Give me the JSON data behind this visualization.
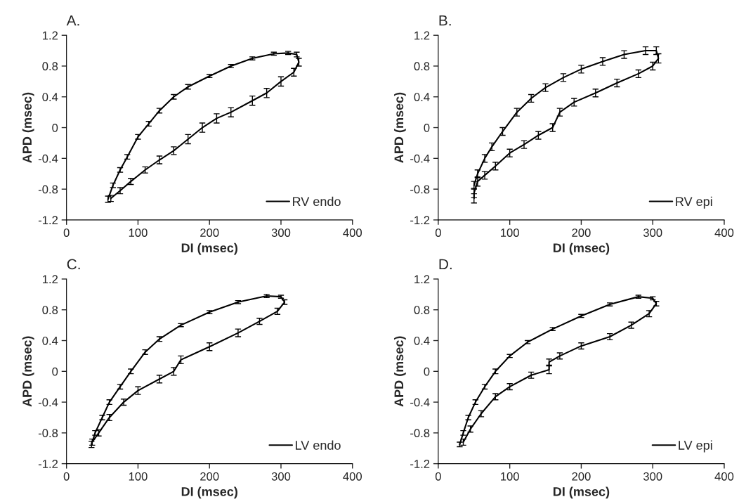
{
  "chart_data": [
    {
      "type": "line",
      "title": "A.",
      "xlabel": "DI (msec)",
      "ylabel": "APD (msec)",
      "xlim": [
        0,
        400
      ],
      "xticks": [
        0,
        100,
        200,
        300,
        400
      ],
      "ylim": [
        -1.2,
        1.2
      ],
      "yticks": [
        -1.2,
        -0.8,
        -0.4,
        0,
        0.4,
        0.8,
        1.2
      ],
      "legend": "bottom right",
      "grid": false,
      "marker": "none",
      "line_style": "solid",
      "series": [
        {
          "name": "RV endo",
          "color": "#000000",
          "x": [
            58,
            65,
            75,
            85,
            100,
            115,
            130,
            150,
            170,
            200,
            230,
            260,
            290,
            310,
            322,
            325,
            318,
            300,
            280,
            260,
            230,
            210,
            190,
            170,
            150,
            130,
            110,
            90,
            75,
            62
          ],
          "values": [
            -0.93,
            -0.75,
            -0.55,
            -0.38,
            -0.12,
            0.05,
            0.22,
            0.4,
            0.53,
            0.67,
            0.8,
            0.9,
            0.96,
            0.97,
            0.95,
            0.85,
            0.72,
            0.6,
            0.45,
            0.35,
            0.2,
            0.12,
            0.0,
            -0.15,
            -0.3,
            -0.42,
            -0.55,
            -0.7,
            -0.82,
            -0.92
          ],
          "errors": [
            0.04,
            0.03,
            0.03,
            0.03,
            0.03,
            0.03,
            0.03,
            0.03,
            0.03,
            0.02,
            0.02,
            0.02,
            0.02,
            0.02,
            0.03,
            0.05,
            0.05,
            0.06,
            0.06,
            0.06,
            0.06,
            0.06,
            0.06,
            0.06,
            0.05,
            0.05,
            0.04,
            0.04,
            0.04,
            0.04
          ]
        }
      ]
    },
    {
      "type": "line",
      "title": "B.",
      "xlabel": "DI (msec)",
      "ylabel": "APD (msec)",
      "xlim": [
        0,
        400
      ],
      "xticks": [
        0,
        100,
        200,
        300,
        400
      ],
      "ylim": [
        -1.2,
        1.2
      ],
      "yticks": [
        -1.2,
        -0.8,
        -0.4,
        0,
        0.4,
        0.8,
        1.2
      ],
      "legend": "bottom right",
      "grid": false,
      "marker": "none",
      "line_style": "solid",
      "series": [
        {
          "name": "RV epi",
          "color": "#000000",
          "x": [
            50,
            55,
            65,
            75,
            90,
            110,
            130,
            150,
            175,
            200,
            230,
            260,
            290,
            305,
            308,
            300,
            280,
            250,
            220,
            190,
            170,
            160,
            140,
            120,
            100,
            80,
            65,
            55,
            50,
            50
          ],
          "values": [
            -0.75,
            -0.6,
            -0.4,
            -0.25,
            -0.05,
            0.2,
            0.38,
            0.52,
            0.65,
            0.76,
            0.86,
            0.95,
            1.0,
            1.0,
            0.9,
            0.8,
            0.7,
            0.58,
            0.45,
            0.33,
            0.2,
            0.0,
            -0.1,
            -0.22,
            -0.33,
            -0.5,
            -0.62,
            -0.7,
            -0.85,
            -0.92
          ],
          "errors": [
            0.05,
            0.05,
            0.05,
            0.05,
            0.05,
            0.05,
            0.05,
            0.05,
            0.05,
            0.05,
            0.05,
            0.05,
            0.05,
            0.05,
            0.06,
            0.05,
            0.05,
            0.05,
            0.05,
            0.05,
            0.05,
            0.05,
            0.05,
            0.05,
            0.05,
            0.05,
            0.05,
            0.06,
            0.06,
            0.06
          ]
        }
      ]
    },
    {
      "type": "line",
      "title": "C.",
      "xlabel": "DI (msec)",
      "ylabel": "APD (msec)",
      "xlim": [
        0,
        400
      ],
      "xticks": [
        0,
        100,
        200,
        300,
        400
      ],
      "ylim": [
        -1.2,
        1.2
      ],
      "yticks": [
        -1.2,
        -0.8,
        -0.4,
        0,
        0.4,
        0.8,
        1.2
      ],
      "legend": "bottom right",
      "grid": false,
      "marker": "none",
      "line_style": "solid",
      "series": [
        {
          "name": "LV endo",
          "color": "#000000",
          "x": [
            35,
            40,
            50,
            60,
            75,
            90,
            110,
            130,
            160,
            200,
            240,
            280,
            300,
            305,
            295,
            270,
            240,
            200,
            160,
            150,
            130,
            100,
            80,
            60,
            45,
            36
          ],
          "values": [
            -0.95,
            -0.8,
            -0.6,
            -0.4,
            -0.2,
            0.0,
            0.25,
            0.42,
            0.6,
            0.77,
            0.9,
            0.98,
            0.97,
            0.9,
            0.78,
            0.65,
            0.5,
            0.32,
            0.15,
            0.0,
            -0.1,
            -0.25,
            -0.4,
            -0.6,
            -0.8,
            -0.92
          ],
          "errors": [
            0.04,
            0.03,
            0.03,
            0.03,
            0.03,
            0.03,
            0.03,
            0.03,
            0.02,
            0.02,
            0.02,
            0.02,
            0.02,
            0.03,
            0.04,
            0.04,
            0.05,
            0.05,
            0.05,
            0.05,
            0.05,
            0.05,
            0.04,
            0.04,
            0.04,
            0.04
          ]
        }
      ]
    },
    {
      "type": "line",
      "title": "D.",
      "xlabel": "DI (msec)",
      "ylabel": "APD (msec)",
      "xlim": [
        0,
        400
      ],
      "xticks": [
        0,
        100,
        200,
        300,
        400
      ],
      "ylim": [
        -1.2,
        1.2
      ],
      "yticks": [
        -1.2,
        -0.8,
        -0.4,
        0,
        0.4,
        0.8,
        1.2
      ],
      "legend": "bottom right",
      "grid": false,
      "marker": "none",
      "line_style": "solid",
      "series": [
        {
          "name": "LV epi",
          "color": "#000000",
          "x": [
            30,
            35,
            42,
            52,
            65,
            80,
            100,
            125,
            160,
            200,
            240,
            280,
            300,
            305,
            295,
            270,
            240,
            200,
            170,
            155,
            155,
            130,
            100,
            80,
            60,
            45,
            35
          ],
          "values": [
            -0.95,
            -0.8,
            -0.6,
            -0.4,
            -0.2,
            0.0,
            0.2,
            0.38,
            0.55,
            0.72,
            0.87,
            0.97,
            0.95,
            0.88,
            0.75,
            0.6,
            0.45,
            0.33,
            0.2,
            0.12,
            0.02,
            -0.05,
            -0.2,
            -0.33,
            -0.55,
            -0.75,
            -0.92
          ],
          "errors": [
            0.03,
            0.03,
            0.03,
            0.03,
            0.03,
            0.03,
            0.02,
            0.02,
            0.02,
            0.02,
            0.02,
            0.02,
            0.02,
            0.03,
            0.04,
            0.04,
            0.04,
            0.04,
            0.04,
            0.04,
            0.05,
            0.04,
            0.04,
            0.04,
            0.04,
            0.04,
            0.04
          ]
        }
      ]
    }
  ]
}
